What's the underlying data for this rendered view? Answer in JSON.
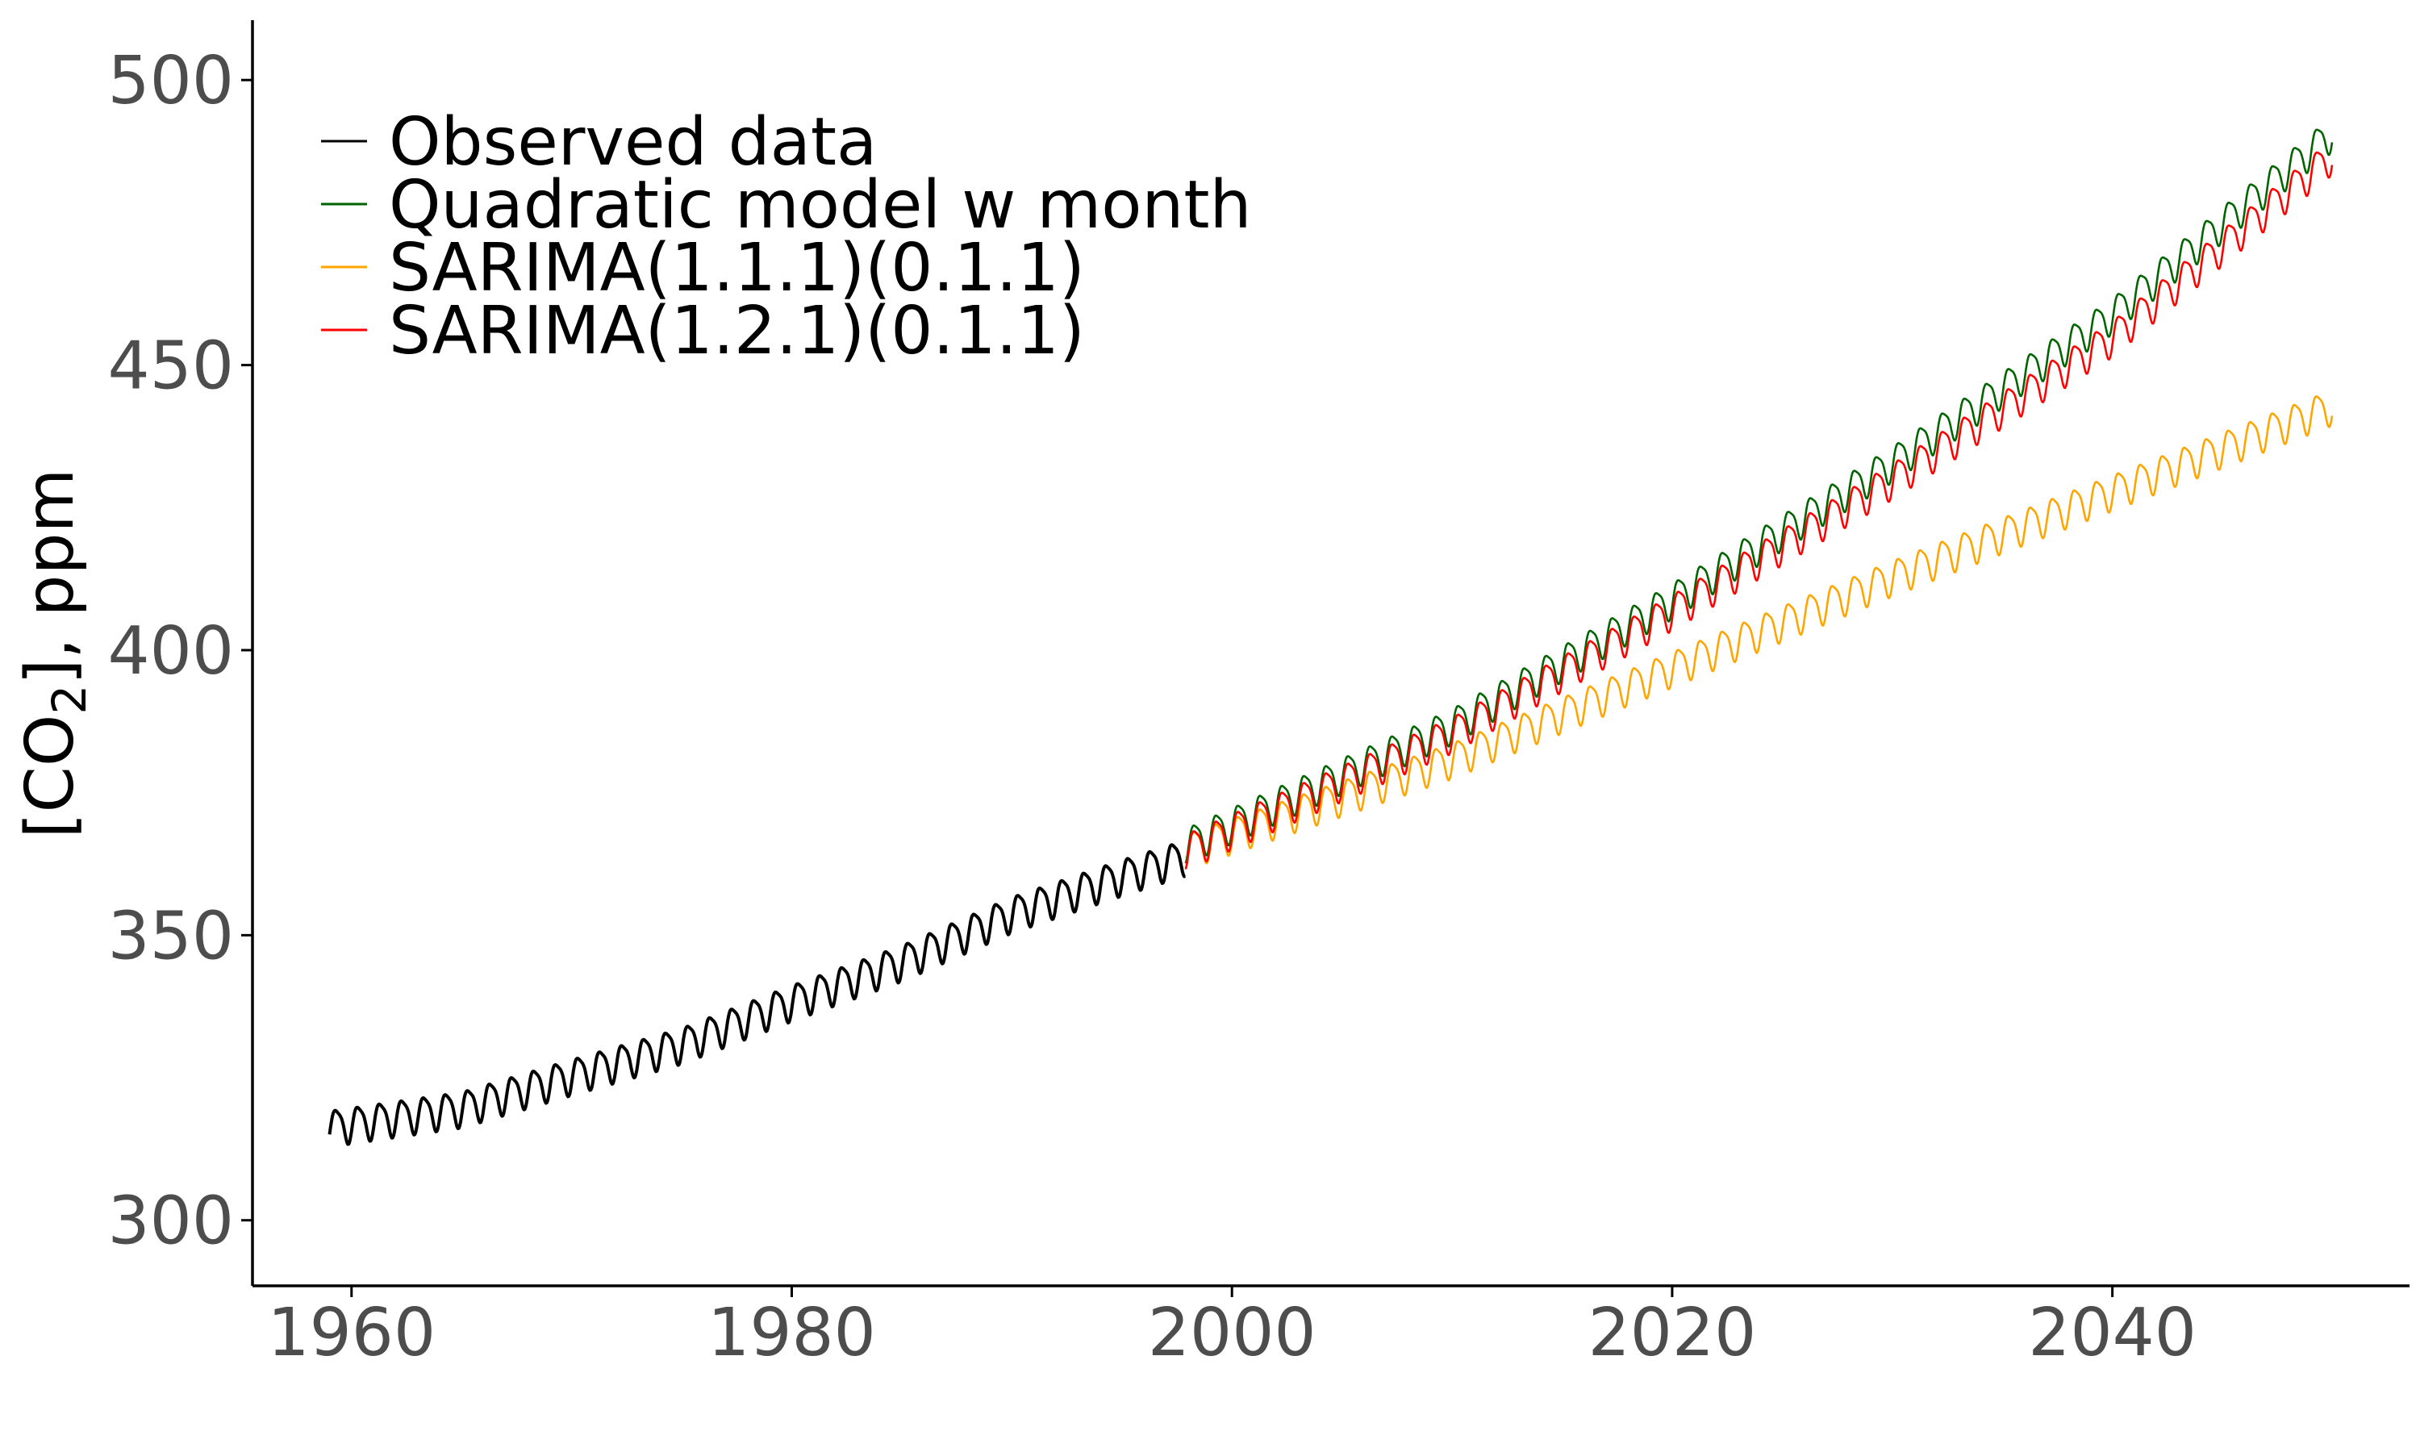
{
  "chart_data": {
    "type": "line",
    "title": "",
    "xlabel": "",
    "ylabel": {
      "prefix": "[CO",
      "subscript": "2",
      "suffix": "], ppm"
    },
    "xlim": [
      1955.5,
      2053.5
    ],
    "ylim": [
      288.5,
      510.5
    ],
    "x_ticks": [
      1960,
      1980,
      2000,
      2020,
      2040
    ],
    "y_ticks": [
      300,
      350,
      400,
      450,
      500
    ],
    "grid": false,
    "legend_position": "top-left",
    "seasonal_amplitude_ppm": 6,
    "series": [
      {
        "name": "Observed data",
        "color": "#000000",
        "x_range": [
          1959.0,
          1997.9
        ],
        "trend_points": [
          [
            1959.0,
            316.5
          ],
          [
            1965.0,
            319.8
          ],
          [
            1970.0,
            325.5
          ],
          [
            1975.0,
            331.0
          ],
          [
            1980.0,
            338.5
          ],
          [
            1985.0,
            345.5
          ],
          [
            1990.0,
            354.0
          ],
          [
            1995.0,
            360.5
          ],
          [
            1997.9,
            364.0
          ]
        ]
      },
      {
        "name": "Quadratic model w month",
        "color": "#006400",
        "x_range": [
          1997.9,
          2050.0
        ],
        "trend_points": [
          [
            1997.9,
            366.0
          ],
          [
            2010.0,
            387.0
          ],
          [
            2020.0,
            409.0
          ],
          [
            2030.0,
            433.0
          ],
          [
            2040.0,
            459.0
          ],
          [
            2050.0,
            491.0
          ]
        ]
      },
      {
        "name": "SARIMA(1.1.1)(0.1.1)",
        "color": "#FFA500",
        "x_range": [
          1997.9,
          2050.0
        ],
        "trend_points": [
          [
            1997.9,
            365.0
          ],
          [
            2010.0,
            381.0
          ],
          [
            2020.0,
            397.0
          ],
          [
            2030.0,
            413.0
          ],
          [
            2040.0,
            428.0
          ],
          [
            2050.0,
            443.0
          ]
        ]
      },
      {
        "name": "SARIMA(1.2.1)(0.1.1)",
        "color": "#FF0000",
        "x_range": [
          1997.9,
          2050.0
        ],
        "trend_points": [
          [
            1997.9,
            365.0
          ],
          [
            2010.0,
            385.5
          ],
          [
            2020.0,
            407.0
          ],
          [
            2030.0,
            430.0
          ],
          [
            2040.0,
            455.0
          ],
          [
            2050.0,
            487.0
          ]
        ]
      }
    ]
  }
}
